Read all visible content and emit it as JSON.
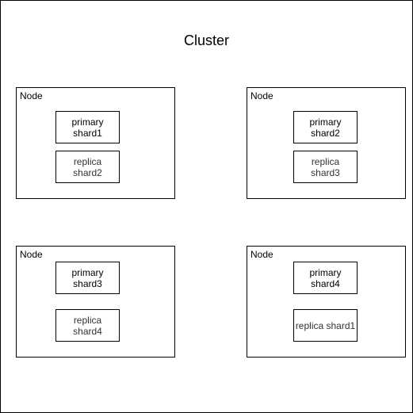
{
  "cluster": {
    "title": "Cluster"
  },
  "nodes": [
    {
      "label": "Node",
      "shards": [
        {
          "kind": "primary",
          "line1": "primary",
          "line2": "shard1"
        },
        {
          "kind": "replica",
          "line1": "replica",
          "line2": "shard2"
        }
      ]
    },
    {
      "label": "Node",
      "shards": [
        {
          "kind": "primary",
          "line1": "primary",
          "line2": "shard2"
        },
        {
          "kind": "replica",
          "line1": "replica",
          "line2": "shard3"
        }
      ]
    },
    {
      "label": "Node",
      "shards": [
        {
          "kind": "primary",
          "line1": "primary",
          "line2": "shard3"
        },
        {
          "kind": "replica",
          "line1": "replica",
          "line2": "shard4"
        }
      ]
    },
    {
      "label": "Node",
      "shards": [
        {
          "kind": "primary",
          "line1": "primary",
          "line2": "shard4"
        },
        {
          "kind": "replica",
          "line1": "replica shard1",
          "line2": ""
        }
      ]
    }
  ],
  "colors": {
    "border": "#000000",
    "background": "#ffffff",
    "primary_text": "#000000",
    "replica_text": "#333333"
  }
}
